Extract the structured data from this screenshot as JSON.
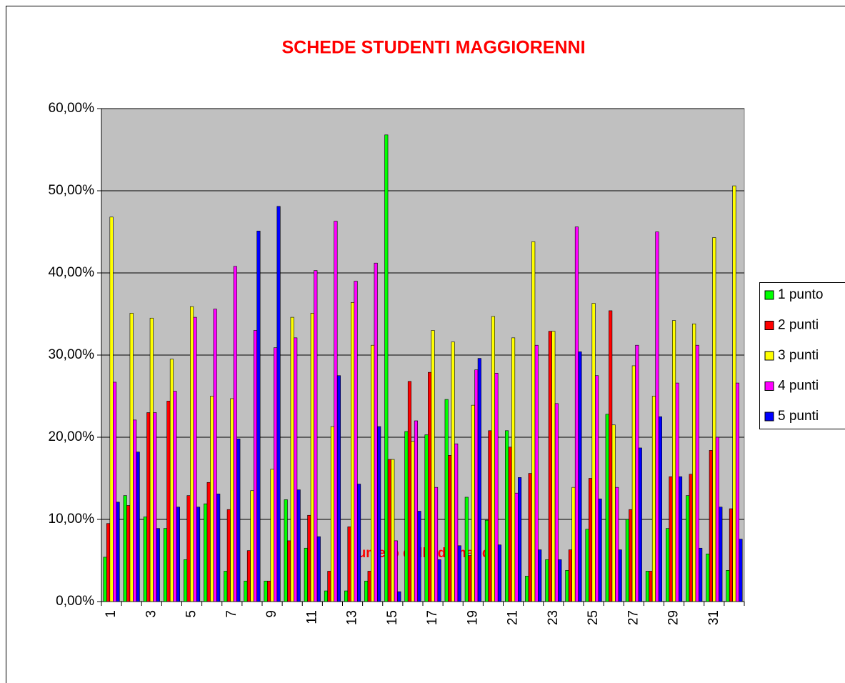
{
  "chart_data": {
    "type": "bar",
    "title": "SCHEDE STUDENTI MAGGIORENNI",
    "x_label": "Numero della domanda",
    "categories": [
      "1",
      null,
      "3",
      null,
      "5",
      null,
      "7",
      null,
      "9",
      null,
      "11",
      null,
      "13",
      null,
      "15",
      null,
      "17",
      null,
      "19",
      null,
      "21",
      null,
      "23",
      null,
      "25",
      null,
      "27",
      null,
      "29",
      null,
      "31",
      null
    ],
    "series": [
      {
        "name": "1 punto",
        "color": "#00ff00",
        "values": [
          5.4,
          12.9,
          10.3,
          8.9,
          5.1,
          11.9,
          3.7,
          2.5,
          2.5,
          12.4,
          6.5,
          1.3,
          1.3,
          2.5,
          56.8,
          20.7,
          20.3,
          24.6,
          12.7,
          9.9,
          20.8,
          3.1,
          5.1,
          3.8,
          8.8,
          22.8,
          10.0,
          3.7,
          8.9,
          12.9,
          5.8,
          3.8
        ]
      },
      {
        "name": "2 punti",
        "color": "#ff0000",
        "values": [
          9.5,
          11.7,
          23.0,
          24.4,
          12.9,
          14.5,
          11.2,
          6.2,
          2.5,
          7.4,
          10.5,
          3.7,
          9.1,
          3.7,
          17.3,
          26.8,
          27.9,
          17.8,
          5.6,
          20.8,
          18.8,
          15.6,
          32.9,
          6.3,
          15.0,
          35.4,
          11.2,
          3.7,
          15.2,
          15.5,
          18.4,
          11.3
        ]
      },
      {
        "name": "3 punti",
        "color": "#ffff00",
        "values": [
          46.8,
          35.1,
          34.5,
          29.5,
          35.9,
          25.0,
          24.7,
          13.5,
          16.1,
          34.6,
          35.1,
          21.3,
          36.4,
          31.2,
          17.3,
          19.5,
          33.0,
          31.6,
          23.9,
          34.7,
          32.1,
          43.8,
          32.9,
          13.9,
          36.3,
          21.5,
          28.7,
          25.0,
          34.2,
          33.8,
          44.3,
          50.6
        ]
      },
      {
        "name": "4 punti",
        "color": "#ff00ff",
        "values": [
          26.7,
          22.1,
          23.0,
          25.6,
          34.6,
          35.6,
          40.8,
          33.0,
          30.9,
          32.1,
          40.3,
          46.3,
          39.0,
          41.2,
          7.4,
          22.0,
          13.9,
          19.2,
          28.2,
          27.8,
          13.2,
          31.2,
          24.1,
          45.6,
          27.5,
          13.9,
          31.2,
          45.0,
          26.6,
          31.2,
          20.0,
          26.6
        ]
      },
      {
        "name": "5 punti",
        "color": "#0000ff",
        "values": [
          12.1,
          18.2,
          8.9,
          11.5,
          11.5,
          13.1,
          19.8,
          45.1,
          48.1,
          13.6,
          7.9,
          27.5,
          14.3,
          21.3,
          1.2,
          11.0,
          5.1,
          6.8,
          29.6,
          6.9,
          15.1,
          6.3,
          5.1,
          30.4,
          12.5,
          6.3,
          18.7,
          22.5,
          15.2,
          6.5,
          11.5,
          7.6
        ]
      }
    ],
    "ylim": [
      0,
      60
    ],
    "yticks": [
      {
        "value": 0,
        "label": "0,00%"
      },
      {
        "value": 10,
        "label": "10,00%"
      },
      {
        "value": 20,
        "label": "20,00%"
      },
      {
        "value": 30,
        "label": "30,00%"
      },
      {
        "value": 40,
        "label": "40,00%"
      },
      {
        "value": 50,
        "label": "50,00%"
      },
      {
        "value": 60,
        "label": "60,00%"
      }
    ],
    "grid": true,
    "legend": "right"
  }
}
